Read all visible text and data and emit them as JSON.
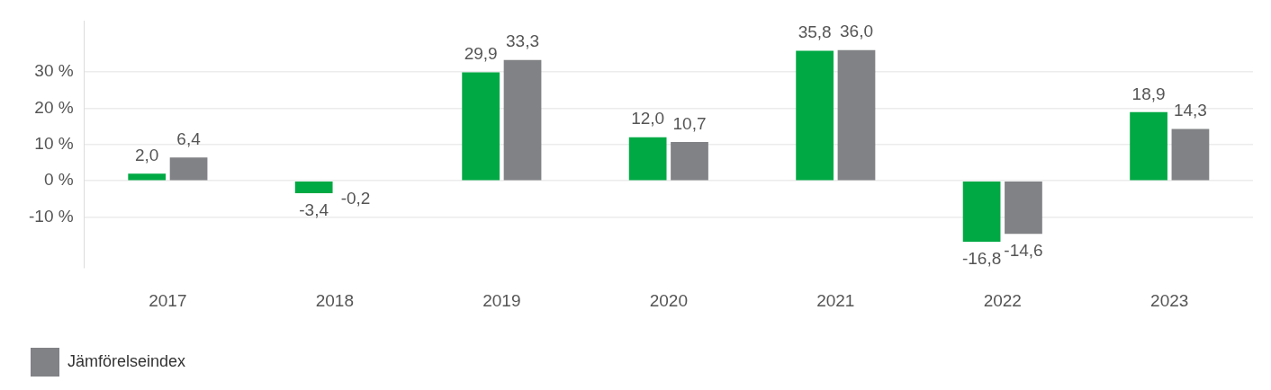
{
  "chart_data": {
    "type": "bar",
    "categories": [
      "2017",
      "2018",
      "2019",
      "2020",
      "2021",
      "2022",
      "2023"
    ],
    "series": [
      {
        "color": "#00a944",
        "values": [
          2.0,
          -3.4,
          29.9,
          12.0,
          35.8,
          -16.8,
          18.9
        ],
        "value_labels": [
          "2,0",
          "-3,4",
          "29,9",
          "12,0",
          "35,8",
          "-16,8",
          "18,9"
        ]
      },
      {
        "name": "Jämförelseindex",
        "color": "#808285",
        "values": [
          6.4,
          -0.2,
          33.3,
          10.7,
          36.0,
          -14.6,
          14.3
        ],
        "value_labels": [
          "6,4",
          "-0,2",
          "33,3",
          "10,7",
          "36,0",
          "-14,6",
          "14,3"
        ]
      }
    ],
    "ylim": [
      -24,
      44
    ],
    "yticks": [
      {
        "value": -10,
        "label": "-10 %"
      },
      {
        "value": 0,
        "label": "0 %"
      },
      {
        "value": 10,
        "label": "10 %"
      },
      {
        "value": 20,
        "label": "20 %"
      },
      {
        "value": 30,
        "label": "30 %"
      }
    ],
    "grid": "y",
    "legend": "bottom left"
  }
}
